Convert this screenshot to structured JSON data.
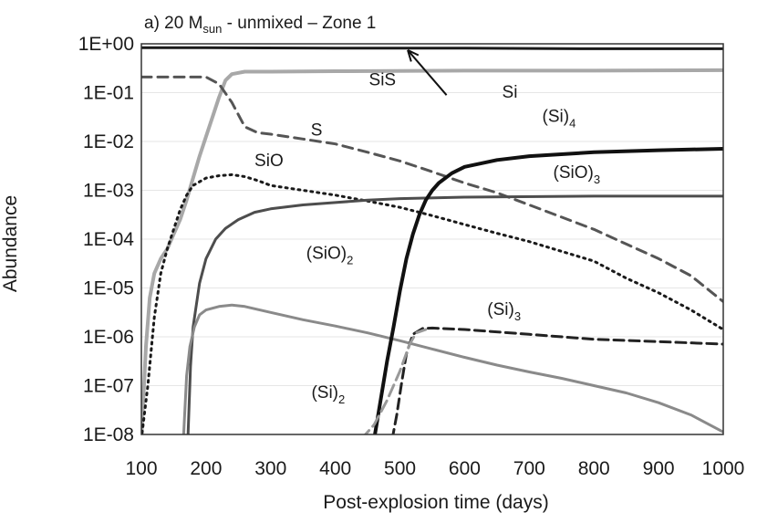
{
  "chart_data": {
    "type": "line",
    "title": {
      "prefix": "a) 20 M",
      "subscript": "sun",
      "suffix": " - unmixed – Zone 1"
    },
    "xlabel": "Post-explosion time (days)",
    "ylabel": "Abundance",
    "yscale": "log",
    "xlim": [
      100,
      1000
    ],
    "ylim_exp": [
      -8,
      0
    ],
    "x_ticks": [
      100,
      200,
      300,
      400,
      500,
      600,
      700,
      800,
      900,
      1000
    ],
    "y_ticks": [
      {
        "exp": 0,
        "label": "1E+00"
      },
      {
        "exp": -1,
        "label": "1E-01"
      },
      {
        "exp": -2,
        "label": "1E-02"
      },
      {
        "exp": -3,
        "label": "1E-03"
      },
      {
        "exp": -4,
        "label": "1E-04"
      },
      {
        "exp": -5,
        "label": "1E-05"
      },
      {
        "exp": -6,
        "label": "1E-06"
      },
      {
        "exp": -7,
        "label": "1E-07"
      },
      {
        "exp": -8,
        "label": "1E-08"
      }
    ],
    "series": [
      {
        "name": "Si",
        "color": "#1a1a1a",
        "width": 3,
        "dash": "",
        "points": [
          [
            100,
            -0.08
          ],
          [
            200,
            -0.08
          ],
          [
            400,
            -0.09
          ],
          [
            600,
            -0.09
          ],
          [
            800,
            -0.1
          ],
          [
            1000,
            -0.1
          ]
        ]
      },
      {
        "name": "SiS",
        "color": "#a8a8a8",
        "width": 4,
        "dash": "",
        "points": [
          [
            100,
            -8.1
          ],
          [
            107,
            -6.2
          ],
          [
            113,
            -5.2
          ],
          [
            120,
            -4.7
          ],
          [
            130,
            -4.4
          ],
          [
            140,
            -4.2
          ],
          [
            150,
            -3.9
          ],
          [
            160,
            -3.6
          ],
          [
            170,
            -3.2
          ],
          [
            180,
            -2.75
          ],
          [
            190,
            -2.3
          ],
          [
            200,
            -1.9
          ],
          [
            210,
            -1.5
          ],
          [
            220,
            -1.1
          ],
          [
            230,
            -0.75
          ],
          [
            240,
            -0.62
          ],
          [
            260,
            -0.57
          ],
          [
            300,
            -0.57
          ],
          [
            400,
            -0.56
          ],
          [
            600,
            -0.55
          ],
          [
            800,
            -0.55
          ],
          [
            1000,
            -0.54
          ]
        ]
      },
      {
        "name": "S",
        "color": "#555555",
        "width": 3,
        "dash": "11,7",
        "points": [
          [
            100,
            -0.68
          ],
          [
            200,
            -0.68
          ],
          [
            220,
            -0.82
          ],
          [
            240,
            -1.2
          ],
          [
            260,
            -1.7
          ],
          [
            280,
            -1.82
          ],
          [
            300,
            -1.85
          ],
          [
            350,
            -1.95
          ],
          [
            400,
            -2.05
          ],
          [
            450,
            -2.22
          ],
          [
            500,
            -2.4
          ],
          [
            550,
            -2.62
          ],
          [
            600,
            -2.85
          ],
          [
            650,
            -3.05
          ],
          [
            700,
            -3.3
          ],
          [
            750,
            -3.55
          ],
          [
            800,
            -3.8
          ],
          [
            850,
            -4.1
          ],
          [
            900,
            -4.4
          ],
          [
            950,
            -4.75
          ],
          [
            1000,
            -5.28
          ]
        ]
      },
      {
        "name": "SiO",
        "color": "#1a1a1a",
        "width": 3,
        "dash": "2,5",
        "points": [
          [
            100,
            -8.1
          ],
          [
            110,
            -7.0
          ],
          [
            120,
            -5.6
          ],
          [
            130,
            -4.7
          ],
          [
            140,
            -4.2
          ],
          [
            150,
            -3.8
          ],
          [
            160,
            -3.4
          ],
          [
            170,
            -3.1
          ],
          [
            180,
            -2.9
          ],
          [
            200,
            -2.75
          ],
          [
            220,
            -2.7
          ],
          [
            240,
            -2.68
          ],
          [
            260,
            -2.72
          ],
          [
            280,
            -2.8
          ],
          [
            300,
            -2.9
          ],
          [
            350,
            -3.0
          ],
          [
            400,
            -3.1
          ],
          [
            450,
            -3.22
          ],
          [
            500,
            -3.35
          ],
          [
            550,
            -3.52
          ],
          [
            600,
            -3.7
          ],
          [
            650,
            -3.88
          ],
          [
            700,
            -4.05
          ],
          [
            750,
            -4.25
          ],
          [
            800,
            -4.45
          ],
          [
            850,
            -4.8
          ],
          [
            900,
            -5.1
          ],
          [
            950,
            -5.45
          ],
          [
            1000,
            -5.85
          ]
        ]
      },
      {
        "name": "(SiO)3",
        "color": "#4d4d4d",
        "width": 3,
        "dash": "",
        "points": [
          [
            172,
            -8.1
          ],
          [
            176,
            -6.6
          ],
          [
            180,
            -5.8
          ],
          [
            190,
            -4.9
          ],
          [
            200,
            -4.4
          ],
          [
            215,
            -4.0
          ],
          [
            230,
            -3.78
          ],
          [
            250,
            -3.6
          ],
          [
            275,
            -3.45
          ],
          [
            300,
            -3.38
          ],
          [
            350,
            -3.3
          ],
          [
            400,
            -3.25
          ],
          [
            450,
            -3.2
          ],
          [
            500,
            -3.17
          ],
          [
            600,
            -3.14
          ],
          [
            800,
            -3.12
          ],
          [
            1000,
            -3.12
          ]
        ]
      },
      {
        "name": "(SiO)2",
        "color": "#8a8a8a",
        "width": 3,
        "dash": "",
        "points": [
          [
            165,
            -8.1
          ],
          [
            170,
            -6.8
          ],
          [
            175,
            -6.2
          ],
          [
            182,
            -5.8
          ],
          [
            190,
            -5.55
          ],
          [
            200,
            -5.45
          ],
          [
            220,
            -5.38
          ],
          [
            240,
            -5.35
          ],
          [
            260,
            -5.38
          ],
          [
            300,
            -5.5
          ],
          [
            350,
            -5.65
          ],
          [
            400,
            -5.78
          ],
          [
            450,
            -5.92
          ],
          [
            500,
            -6.08
          ],
          [
            550,
            -6.25
          ],
          [
            600,
            -6.42
          ],
          [
            650,
            -6.58
          ],
          [
            700,
            -6.72
          ],
          [
            750,
            -6.85
          ],
          [
            800,
            -7.0
          ],
          [
            850,
            -7.15
          ],
          [
            900,
            -7.35
          ],
          [
            950,
            -7.6
          ],
          [
            1000,
            -7.95
          ]
        ]
      },
      {
        "name": "(Si)4",
        "color": "#111111",
        "width": 4,
        "dash": "",
        "points": [
          [
            460,
            -8.1
          ],
          [
            470,
            -7.3
          ],
          [
            480,
            -6.5
          ],
          [
            490,
            -5.8
          ],
          [
            500,
            -5.05
          ],
          [
            510,
            -4.4
          ],
          [
            520,
            -3.9
          ],
          [
            530,
            -3.5
          ],
          [
            540,
            -3.2
          ],
          [
            550,
            -3.0
          ],
          [
            560,
            -2.85
          ],
          [
            580,
            -2.65
          ],
          [
            600,
            -2.52
          ],
          [
            650,
            -2.38
          ],
          [
            700,
            -2.3
          ],
          [
            800,
            -2.22
          ],
          [
            900,
            -2.18
          ],
          [
            1000,
            -2.15
          ]
        ]
      },
      {
        "name": "(Si)3",
        "color": "#222222",
        "width": 3,
        "dash": "11,6",
        "points": [
          [
            488,
            -8.1
          ],
          [
            495,
            -7.6
          ],
          [
            503,
            -6.9
          ],
          [
            510,
            -6.35
          ],
          [
            520,
            -5.95
          ],
          [
            535,
            -5.83
          ],
          [
            550,
            -5.82
          ],
          [
            600,
            -5.85
          ],
          [
            700,
            -5.95
          ],
          [
            800,
            -6.05
          ],
          [
            900,
            -6.1
          ],
          [
            1000,
            -6.15
          ]
        ]
      },
      {
        "name": "(Si)2",
        "color": "#999999",
        "width": 3,
        "dash": "13,6",
        "points": [
          [
            440,
            -8.1
          ],
          [
            460,
            -7.8
          ],
          [
            480,
            -7.3
          ],
          [
            500,
            -6.7
          ],
          [
            515,
            -6.15
          ],
          [
            525,
            -5.92
          ],
          [
            540,
            -5.85
          ]
        ]
      }
    ],
    "annotations": [
      {
        "base": "SiS",
        "sub": "",
        "x": 452,
        "exp": -0.85
      },
      {
        "base": "Si",
        "sub": "",
        "x": 658,
        "exp": -1.1
      },
      {
        "base": "S",
        "sub": "",
        "x": 362,
        "exp": -1.88
      },
      {
        "base": "SiO",
        "sub": "",
        "x": 275,
        "exp": -2.5
      },
      {
        "base": "(Si)",
        "sub": "4",
        "x": 720,
        "exp": -1.6
      },
      {
        "base": "(SiO)",
        "sub": "3",
        "x": 737,
        "exp": -2.75
      },
      {
        "base": "(SiO)",
        "sub": "2",
        "x": 355,
        "exp": -4.4
      },
      {
        "base": "(Si)",
        "sub": "3",
        "x": 635,
        "exp": -5.55
      },
      {
        "base": "(Si)",
        "sub": "2",
        "x": 363,
        "exp": -7.25
      }
    ],
    "arrow": {
      "from_x": 572,
      "from_exp": -1.05,
      "to_x": 512,
      "to_exp": -0.13
    }
  }
}
